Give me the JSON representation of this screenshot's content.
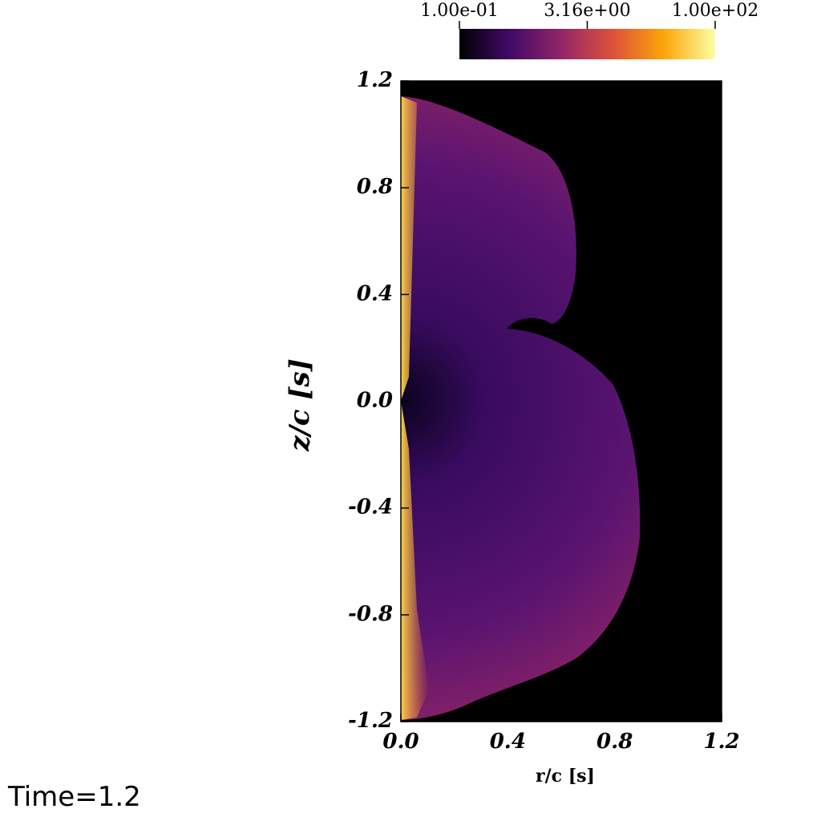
{
  "chart_data": {
    "type": "pseudocolor",
    "xlabel": "r/c [s]",
    "ylabel": "z/c [s]",
    "annotation": "Time=1.2",
    "xlim": [
      0,
      1.2
    ],
    "ylim": [
      -1.2,
      1.2
    ],
    "xticks": [
      {
        "value": 0,
        "label": "0.0"
      },
      0.4,
      0.8,
      1.2
    ],
    "yticks": [
      -1.2,
      -0.8,
      -0.4,
      {
        "value": 0,
        "label": "0.0"
      },
      0.4,
      0.8,
      1.2
    ],
    "colorbar": {
      "scale": "log",
      "lim": [
        0.1,
        100
      ],
      "ticks": [
        {
          "value": 0.1,
          "label": "1.00e-01"
        },
        {
          "value": 3.16,
          "label": "3.16e+00"
        },
        {
          "value": 100,
          "label": "1.00e+02"
        }
      ],
      "colors": [
        "#000004",
        "#420a68",
        "#932667",
        "#dd513a",
        "#fca50a",
        "#fcffa4"
      ]
    }
  }
}
